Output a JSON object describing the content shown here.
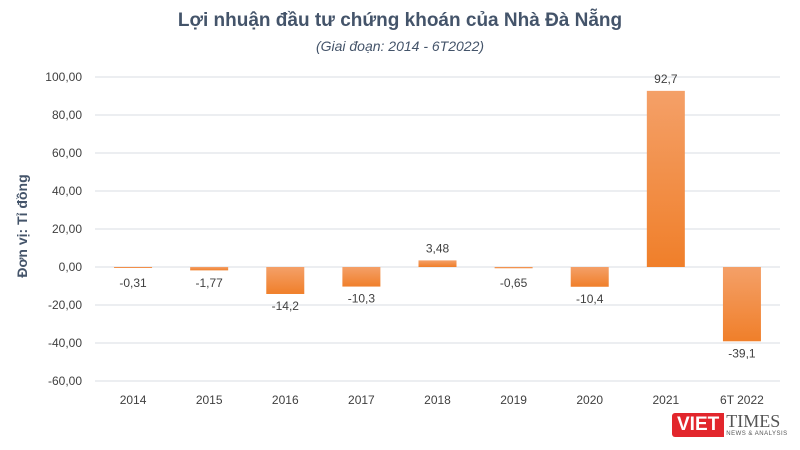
{
  "chart_data": {
    "type": "bar",
    "title": "Lợi nhuận đầu tư chứng khoán của Nhà Đà Nẵng",
    "subtitle": "(Giai đoạn: 2014 - 6T2022)",
    "ylabel": "Đơn vị: Tỉ đồng",
    "categories": [
      "2014",
      "2015",
      "2016",
      "2017",
      "2018",
      "2019",
      "2020",
      "2021",
      "6T 2022"
    ],
    "values": [
      -0.31,
      -1.77,
      -14.2,
      -10.3,
      3.48,
      -0.65,
      -10.4,
      92.7,
      -39.1
    ],
    "data_labels": [
      "-0,31",
      "-1,77",
      "-14,2",
      "-10,3",
      "3,48",
      "-0,65",
      "-10,4",
      "92,7",
      "-39,1"
    ],
    "ylim": [
      -60,
      100
    ],
    "yticks": [
      "-60,00",
      "-40,00",
      "-20,00",
      "0,00",
      "20,00",
      "40,00",
      "60,00",
      "80,00",
      "100,00"
    ],
    "grid": true,
    "bar_color": "#f07f2a",
    "bar_color_light": "#f4a068"
  },
  "watermark": {
    "viet": "VIET",
    "times": "TIMES",
    "tagline": "NEWS & ANALYSIS"
  }
}
